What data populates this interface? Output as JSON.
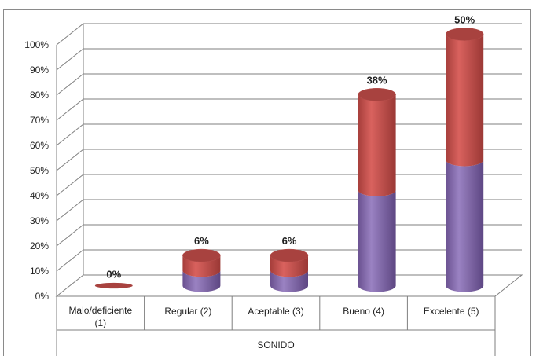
{
  "chart_data": {
    "type": "bar",
    "style": "3d-stacked-cylinder",
    "categories": [
      [
        "Malo/deficiente",
        "(1)"
      ],
      [
        "Regular (2)"
      ],
      [
        "Aceptable (3)"
      ],
      [
        "Bueno (4)"
      ],
      [
        "Excelente (5)"
      ]
    ],
    "series": [
      {
        "values": [
          0,
          6,
          6,
          38,
          50
        ],
        "color": "#8064a2"
      },
      {
        "values": [
          0,
          6,
          6,
          38,
          50
        ],
        "color": "#c0504d"
      }
    ],
    "data_labels": [
      "0%",
      "6%",
      "6%",
      "38%",
      "50%"
    ],
    "xlabel": "SONIDO",
    "ylim": [
      0,
      100
    ],
    "yticks": [
      "0%",
      "10%",
      "20%",
      "30%",
      "40%",
      "50%",
      "60%",
      "70%",
      "80%",
      "90%",
      "100%"
    ],
    "grid": true,
    "legend": "none"
  }
}
